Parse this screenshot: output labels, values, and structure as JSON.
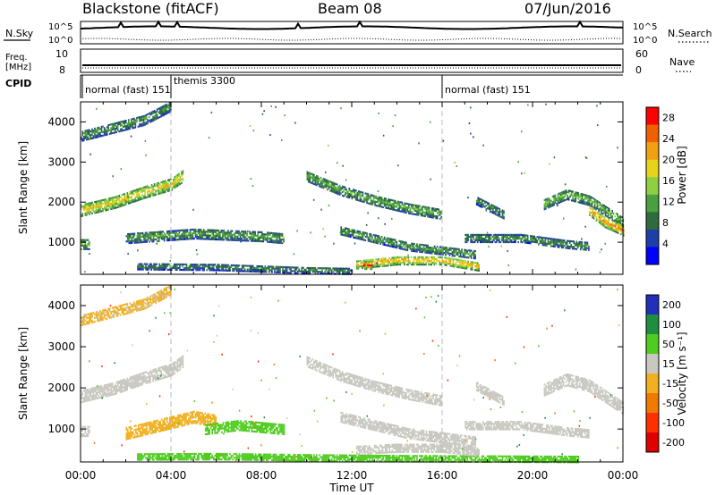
{
  "header": {
    "station": "Blackstone (fitACF)",
    "beam": "Beam 08",
    "date": "07/Jun/2016"
  },
  "top_panels": {
    "nsky": {
      "label": "N.Sky",
      "ticks": [
        "10^5",
        "10^0"
      ]
    },
    "nsearch": {
      "label": "N.Search",
      "ticks": [
        "10^5",
        "10^0"
      ]
    },
    "freq": {
      "label_line1": "Freq.",
      "label_line2": "[MHz]",
      "ticks": [
        "10",
        "8"
      ]
    },
    "nave": {
      "label": "Nave",
      "ticks": [
        "60",
        "0"
      ]
    },
    "cpid": {
      "label": "CPID",
      "modes": [
        {
          "name": "normal (fast) 151",
          "start_hour": 0
        },
        {
          "name": "themis 3300",
          "start_hour": 4
        },
        {
          "name": "normal (fast) 151",
          "start_hour": 16
        }
      ]
    }
  },
  "colors": {
    "power_scale": [
      "#0000ff",
      "#1f3fa8",
      "#2e6b3e",
      "#48a040",
      "#8fd040",
      "#e8d21a",
      "#f0a010",
      "#f06000",
      "#ff0000"
    ],
    "velocity_scale": [
      "#2030b8",
      "#1d8f3e",
      "#50cc20",
      "#c8c8c0",
      "#f0b020",
      "#f07a00",
      "#ff3000",
      "#e00000"
    ]
  },
  "chart_data": [
    {
      "type": "heatmap",
      "title": "Power",
      "xlabel": "",
      "ylabel": "Slant Range [km]",
      "x_range_hours": [
        0,
        24
      ],
      "ylim": [
        200,
        4500
      ],
      "y_ticks": [
        "1000",
        "2000",
        "3000",
        "4000"
      ],
      "colorbar": {
        "label": "Power [dB]",
        "ticks": [
          "4",
          "8",
          "12",
          "16",
          "20",
          "24",
          "28"
        ],
        "range": [
          0,
          30
        ]
      },
      "bands": [
        {
          "x": [
            0.0,
            1.4,
            2.8,
            4.0
          ],
          "y_center": [
            3650,
            3850,
            4050,
            4400
          ],
          "thickness_km": 260,
          "value": 9
        },
        {
          "x": [
            0.0,
            1.5,
            2.8,
            4.0,
            4.5
          ],
          "y_center": [
            1800,
            2000,
            2250,
            2450,
            2650
          ],
          "thickness_km": 300,
          "value": 18
        },
        {
          "x": [
            0.0,
            0.4
          ],
          "y_center": [
            950,
            950
          ],
          "thickness_km": 250,
          "value": 12
        },
        {
          "x": [
            2.0,
            5.0,
            8.0,
            9.0
          ],
          "y_center": [
            1100,
            1220,
            1150,
            1100
          ],
          "thickness_km": 260,
          "value": 10
        },
        {
          "x": [
            2.5,
            6.0,
            10.0,
            12.0
          ],
          "y_center": [
            400,
            380,
            300,
            280
          ],
          "thickness_km": 160,
          "value": 8
        },
        {
          "x": [
            10.0,
            11.5,
            13.0,
            14.5,
            16.0
          ],
          "y_center": [
            2650,
            2300,
            2050,
            1850,
            1700
          ],
          "thickness_km": 260,
          "value": 11
        },
        {
          "x": [
            11.5,
            13.0,
            14.5,
            16.0,
            17.5
          ],
          "y_center": [
            1300,
            1100,
            900,
            800,
            700
          ],
          "thickness_km": 220,
          "value": 10
        },
        {
          "x": [
            12.2,
            14.0,
            16.0,
            17.6
          ],
          "y_center": [
            450,
            550,
            550,
            400
          ],
          "thickness_km": 220,
          "value": 20
        },
        {
          "x": [
            12.5,
            12.9
          ],
          "y_center": [
            420,
            420
          ],
          "thickness_km": 180,
          "value": 28
        },
        {
          "x": [
            17.0,
            19.5,
            21.5,
            22.5
          ],
          "y_center": [
            1100,
            1100,
            950,
            900
          ],
          "thickness_km": 200,
          "value": 9
        },
        {
          "x": [
            20.5,
            21.5,
            22.5,
            24.0
          ],
          "y_center": [
            1950,
            2200,
            2050,
            1500
          ],
          "thickness_km": 260,
          "value": 12
        },
        {
          "x": [
            22.5,
            23.2,
            24.0
          ],
          "y_center": [
            1800,
            1500,
            1300
          ],
          "thickness_km": 260,
          "value": 22
        },
        {
          "x": [
            17.5,
            18.7
          ],
          "y_center": [
            2050,
            1700
          ],
          "thickness_km": 220,
          "value": 9
        }
      ]
    },
    {
      "type": "heatmap",
      "title": "Velocity",
      "xlabel": "Time UT",
      "ylabel": "Slant Range [km]",
      "x_range_hours": [
        0,
        24
      ],
      "ylim": [
        200,
        4500
      ],
      "y_ticks": [
        "1000",
        "2000",
        "3000",
        "4000"
      ],
      "x_ticks": [
        "00:00",
        "04:00",
        "08:00",
        "12:00",
        "16:00",
        "20:00",
        "00:00"
      ],
      "colorbar": {
        "label": "Velocity [m s⁻¹]",
        "ticks": [
          "200",
          "100",
          "50",
          "15",
          "-15",
          "-50",
          "-100",
          "-200"
        ]
      },
      "bands": [
        {
          "x": [
            0.0,
            1.4,
            2.8,
            4.0
          ],
          "y_center": [
            3650,
            3850,
            4050,
            4400
          ],
          "thickness_km": 260,
          "value": -20
        },
        {
          "x": [
            0.0,
            1.5,
            2.8,
            4.0,
            4.5
          ],
          "y_center": [
            1800,
            2000,
            2250,
            2450,
            2650
          ],
          "thickness_km": 300,
          "value": 0
        },
        {
          "x": [
            0.0,
            0.4
          ],
          "y_center": [
            950,
            950
          ],
          "thickness_km": 250,
          "value": 0
        },
        {
          "x": [
            2.0,
            3.5,
            5.0,
            6.0
          ],
          "y_center": [
            900,
            1100,
            1300,
            1200
          ],
          "thickness_km": 300,
          "value": -40
        },
        {
          "x": [
            5.5,
            7.0,
            9.0
          ],
          "y_center": [
            1000,
            1100,
            1000
          ],
          "thickness_km": 260,
          "value": 30
        },
        {
          "x": [
            2.5,
            6.0,
            10.0,
            14.0,
            18.0,
            22.0
          ],
          "y_center": [
            320,
            330,
            300,
            280,
            270,
            260
          ],
          "thickness_km": 140,
          "value": 40
        },
        {
          "x": [
            10.0,
            11.5,
            13.0,
            14.5,
            16.0
          ],
          "y_center": [
            2650,
            2300,
            2050,
            1850,
            1700
          ],
          "thickness_km": 260,
          "value": 0
        },
        {
          "x": [
            11.5,
            13.0,
            14.5,
            16.0,
            17.5
          ],
          "y_center": [
            1300,
            1100,
            900,
            800,
            700
          ],
          "thickness_km": 260,
          "value": 0
        },
        {
          "x": [
            12.2,
            14.0,
            16.0,
            17.6
          ],
          "y_center": [
            500,
            550,
            550,
            450
          ],
          "thickness_km": 220,
          "value": 0
        },
        {
          "x": [
            17.0,
            19.5,
            21.5,
            22.5
          ],
          "y_center": [
            1100,
            1100,
            950,
            900
          ],
          "thickness_km": 220,
          "value": 0
        },
        {
          "x": [
            20.5,
            21.5,
            22.5,
            24.0
          ],
          "y_center": [
            1950,
            2200,
            2050,
            1500
          ],
          "thickness_km": 280,
          "value": 0
        },
        {
          "x": [
            17.5,
            18.7
          ],
          "y_center": [
            2050,
            1700
          ],
          "thickness_km": 220,
          "value": 0
        }
      ]
    }
  ]
}
